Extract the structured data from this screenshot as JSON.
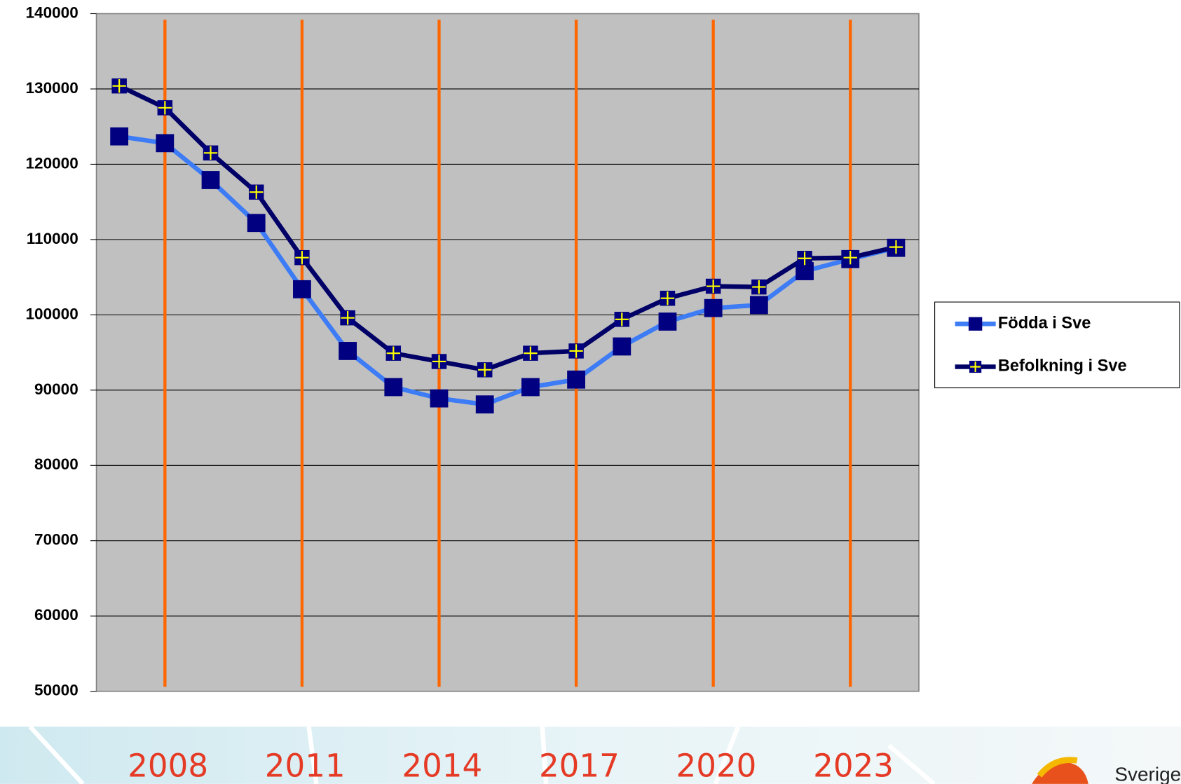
{
  "chart_data": {
    "type": "line",
    "x": [
      2007,
      2008,
      2009,
      2010,
      2011,
      2012,
      2013,
      2014,
      2015,
      2016,
      2017,
      2018,
      2019,
      2020,
      2021,
      2022,
      2023,
      2024
    ],
    "series": [
      {
        "name": "Födda i Sve",
        "color": "#3d7cf5",
        "marker_color": "#000080",
        "values": [
          123700,
          122800,
          117900,
          112200,
          103400,
          95200,
          90400,
          88900,
          88100,
          90400,
          91400,
          95800,
          99100,
          100900,
          101300,
          105800,
          107400,
          108900
        ]
      },
      {
        "name": "Befolkning i Sve",
        "color": "#000066",
        "marker_color": "#000080",
        "values": [
          130400,
          127500,
          121500,
          116300,
          107600,
          99600,
          94900,
          93800,
          92700,
          94900,
          95200,
          99400,
          102200,
          103800,
          103700,
          107500,
          107600,
          109000
        ]
      }
    ],
    "xlim": [
      2006.5,
      2024.5
    ],
    "xticks": [
      2008,
      2011,
      2014,
      2017,
      2020,
      2023
    ],
    "ylim": [
      50000,
      140000
    ],
    "yticks": [
      50000,
      60000,
      70000,
      80000,
      90000,
      100000,
      110000,
      120000,
      130000,
      140000
    ],
    "grid": true,
    "legend": "right"
  },
  "logo_text": "Sverige"
}
